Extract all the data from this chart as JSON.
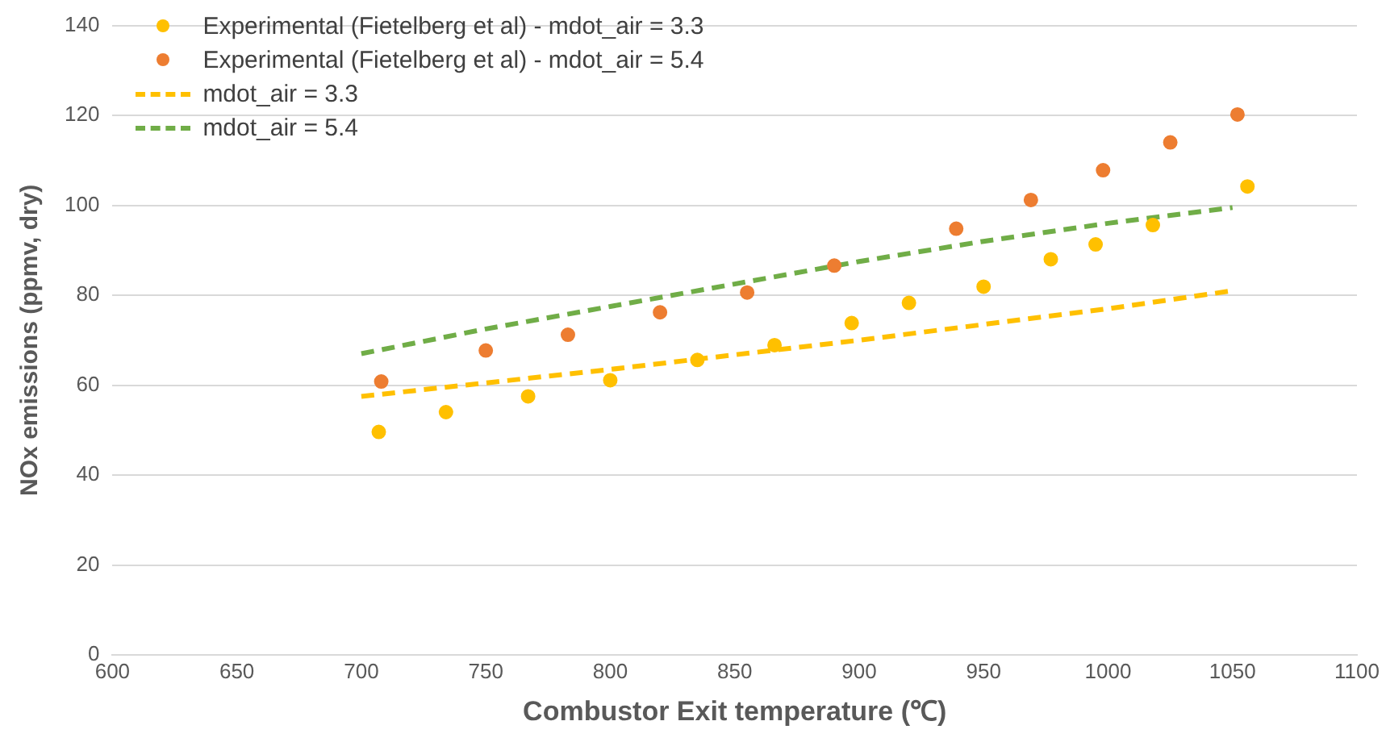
{
  "chart_data": {
    "type": "scatter",
    "xlabel": "Combustor Exit temperature (℃)",
    "ylabel": "NOx emissions (ppmv, dry)",
    "xlim": [
      600,
      1100
    ],
    "xticks": [
      600,
      650,
      700,
      750,
      800,
      850,
      900,
      950,
      1000,
      1050,
      1100
    ],
    "ylim": [
      0,
      140
    ],
    "yticks": [
      0,
      20,
      40,
      60,
      80,
      100,
      120,
      140
    ],
    "grid": "y",
    "legend": "top left",
    "series": [
      {
        "name": "Experimental (Fietelberg et al) - mdot_air = 3.3",
        "marker": "circle",
        "color": "#ffc000",
        "x": [
          707,
          734,
          767,
          800,
          835,
          866,
          897,
          920,
          950,
          977,
          995,
          1018,
          1056
        ],
        "values": [
          49.6,
          54.0,
          57.5,
          61.1,
          65.6,
          68.9,
          73.8,
          78.3,
          81.9,
          88.0,
          91.3,
          95.6,
          104.2
        ]
      },
      {
        "name": "Experimental (Fietelberg et al) - mdot_air = 5.4",
        "marker": "circle",
        "color": "#ed7d31",
        "x": [
          708,
          750,
          783,
          820,
          855,
          890,
          939,
          969,
          998,
          1025,
          1052
        ],
        "values": [
          60.8,
          67.7,
          71.2,
          76.2,
          80.6,
          86.6,
          94.8,
          101.2,
          107.8,
          114.0,
          120.2
        ]
      },
      {
        "name": "mdot_air = 3.3",
        "type": "line",
        "marker": "none",
        "line_style": "dashed",
        "color": "#ffc000",
        "x": [
          700,
          800,
          900,
          1000,
          1050
        ],
        "values": [
          57.5,
          63.5,
          70,
          77,
          81
        ]
      },
      {
        "name": "mdot_air = 5.4",
        "type": "line",
        "marker": "none",
        "line_style": "dashed",
        "color": "#70ad47",
        "x": [
          700,
          750,
          800,
          850,
          900,
          950,
          1000,
          1050
        ],
        "values": [
          67,
          72.5,
          77.5,
          82.5,
          87.5,
          92,
          96,
          99.5
        ]
      }
    ]
  }
}
